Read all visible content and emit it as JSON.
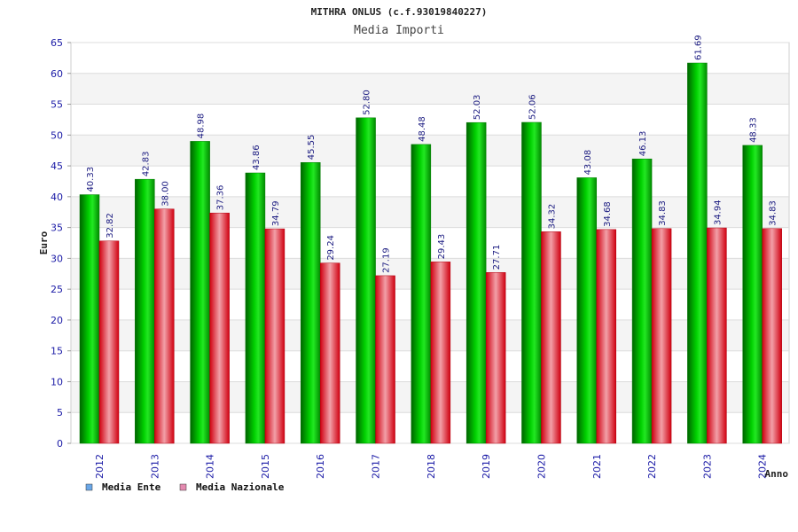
{
  "chart_data": {
    "type": "bar",
    "title": "MITHRA ONLUS (c.f.93019840227)",
    "subtitle": "Media Importi",
    "xlabel": "Anno",
    "ylabel": "Euro",
    "ylim": [
      0,
      65
    ],
    "ytick_step": 5,
    "grid": true,
    "legend_position": "bottom-left",
    "categories": [
      "2012",
      "2013",
      "2014",
      "2015",
      "2016",
      "2017",
      "2018",
      "2019",
      "2020",
      "2021",
      "2022",
      "2023",
      "2024"
    ],
    "series": [
      {
        "name": "Media Ente",
        "color": "#00c000",
        "legend_color": "#6aa7e8",
        "values": [
          40.33,
          42.83,
          48.98,
          43.86,
          45.55,
          52.8,
          48.48,
          52.03,
          52.06,
          43.08,
          46.13,
          61.69,
          48.33
        ],
        "labels": [
          "40.33",
          "42.83",
          "48.98",
          "43.86",
          "45.55",
          "52.80",
          "48.48",
          "52.03",
          "52.06",
          "43.08",
          "46.13",
          "61.69",
          "48.33"
        ]
      },
      {
        "name": "Media Nazionale",
        "color": "#e01020",
        "legend_color": "#e48ab0",
        "values": [
          32.82,
          38.0,
          37.36,
          34.79,
          29.24,
          27.19,
          29.43,
          27.71,
          34.32,
          34.68,
          34.83,
          34.94,
          34.83
        ],
        "labels": [
          "32.82",
          "38.00",
          "37.36",
          "34.79",
          "29.24",
          "27.19",
          "29.43",
          "27.71",
          "34.32",
          "34.68",
          "34.83",
          "34.94",
          "34.83"
        ]
      }
    ]
  }
}
